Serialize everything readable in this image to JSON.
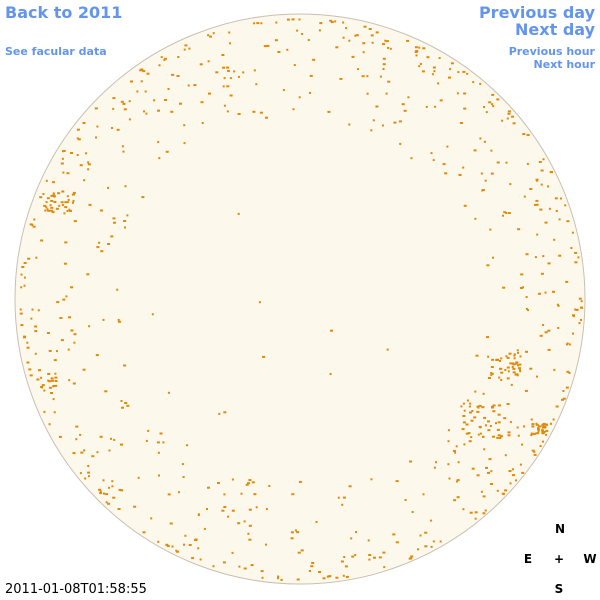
{
  "links": {
    "back": "Back to 2011",
    "facular": "See facular data",
    "previous_day": "Previous day",
    "next_day": "Next day",
    "previous_hour": "Previous hour",
    "next_hour": "Next hour"
  },
  "compass": {
    "north": "N",
    "east": "E",
    "center": "+",
    "west": "W",
    "south": "S"
  },
  "timestamp": "2011-01-08T01:58:55"
}
